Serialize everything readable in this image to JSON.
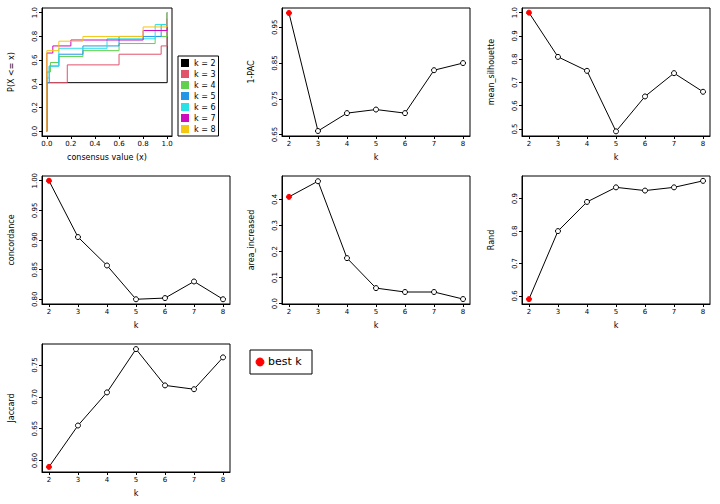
{
  "chart_data": [
    {
      "type": "step",
      "xlabel": "consensus value (x)",
      "ylabel": "P(X <= x)",
      "xlim": [
        -0.04,
        1.04
      ],
      "ylim": [
        -0.04,
        1.04
      ],
      "xticks": [
        {
          "value": 0,
          "label": "0.0"
        },
        {
          "value": 0.2,
          "label": "0.2"
        },
        {
          "value": 0.4,
          "label": "0.4"
        },
        {
          "value": 0.6,
          "label": "0.6"
        },
        {
          "value": 0.8,
          "label": "0.8"
        },
        {
          "value": 1,
          "label": "1.0"
        }
      ],
      "yticks": [
        {
          "value": 0,
          "label": "0.0"
        },
        {
          "value": 0.2,
          "label": "0.2"
        },
        {
          "value": 0.4,
          "label": "0.4"
        },
        {
          "value": 0.6,
          "label": "0.6"
        },
        {
          "value": 0.8,
          "label": "0.8"
        },
        {
          "value": 1,
          "label": "1.0"
        }
      ],
      "legend": "bottom-right",
      "series": [
        {
          "name": "k = 2",
          "color": "#000000",
          "x": [
            0,
            0,
            0.99,
            1.0
          ],
          "values": [
            0,
            0.41,
            0.41,
            1.0
          ]
        },
        {
          "name": "k = 3",
          "color": "#DF536B",
          "x": [
            0,
            0,
            0.17,
            0.6,
            0.95,
            1.0
          ],
          "values": [
            0,
            0.41,
            0.56,
            0.65,
            0.72,
            1.0
          ]
        },
        {
          "name": "k = 4",
          "color": "#61D04F",
          "x": [
            0,
            0,
            0.03,
            0.1,
            0.3,
            0.6,
            0.9,
            1.0
          ],
          "values": [
            0,
            0.5,
            0.58,
            0.63,
            0.68,
            0.74,
            0.8,
            1.0
          ]
        },
        {
          "name": "k = 5",
          "color": "#2297E6",
          "x": [
            0,
            0,
            0.02,
            0.1,
            0.3,
            0.6,
            0.95,
            1.0
          ],
          "values": [
            0,
            0.41,
            0.55,
            0.65,
            0.72,
            0.8,
            0.9,
            1.0
          ]
        },
        {
          "name": "k = 6",
          "color": "#28E2E5",
          "x": [
            0,
            0,
            0.02,
            0.1,
            0.5,
            0.9,
            1.0
          ],
          "values": [
            0,
            0.45,
            0.55,
            0.7,
            0.78,
            0.9,
            1.0
          ]
        },
        {
          "name": "k = 7",
          "color": "#CD0BBC",
          "x": [
            0,
            0,
            0.05,
            0.2,
            0.8,
            1.0
          ],
          "values": [
            0,
            0.66,
            0.72,
            0.77,
            0.85,
            0.95
          ]
        },
        {
          "name": "k = 8",
          "color": "#F5C710",
          "x": [
            0,
            0,
            0.1,
            0.3,
            0.8,
            1.0
          ],
          "values": [
            0,
            0.68,
            0.76,
            0.8,
            0.88,
            1.0
          ]
        }
      ]
    },
    {
      "type": "line",
      "xlabel": "k",
      "ylabel": "1-PAC",
      "marker": "circle",
      "x": [
        2,
        3,
        4,
        5,
        6,
        7,
        8
      ],
      "values": [
        0.99,
        0.66,
        0.71,
        0.72,
        0.71,
        0.83,
        0.85
      ],
      "colors": [
        "#FF0000",
        "#000000",
        "#000000",
        "#000000",
        "#000000",
        "#000000",
        "#000000"
      ],
      "xlim": [
        1.76,
        8.24
      ],
      "xticks": [
        2,
        3,
        4,
        5,
        6,
        7,
        8
      ],
      "ylim": [
        0.646,
        1.004
      ],
      "yticks": [
        0.65,
        0.75,
        0.85,
        0.95
      ]
    },
    {
      "type": "line",
      "xlabel": "k",
      "ylabel": "mean_silhouette",
      "marker": "circle",
      "x": [
        2,
        3,
        4,
        5,
        6,
        7,
        8
      ],
      "values": [
        1.0,
        0.81,
        0.75,
        0.49,
        0.64,
        0.74,
        0.66
      ],
      "colors": [
        "#FF0000",
        "#000000",
        "#000000",
        "#000000",
        "#000000",
        "#000000",
        "#000000"
      ],
      "xlim": [
        1.76,
        8.24
      ],
      "xticks": [
        2,
        3,
        4,
        5,
        6,
        7,
        8
      ],
      "ylim": [
        0.47,
        1.02
      ],
      "yticks": [
        0.5,
        0.6,
        0.7,
        0.8,
        0.9,
        {
          "value": 1,
          "label": "1.0"
        }
      ]
    },
    {
      "type": "line",
      "xlabel": "k",
      "ylabel": "concordance",
      "marker": "circle",
      "x": [
        2,
        3,
        4,
        5,
        6,
        7,
        8
      ],
      "values": [
        1.0,
        0.905,
        0.857,
        0.8,
        0.802,
        0.83,
        0.8
      ],
      "colors": [
        "#FF0000",
        "#000000",
        "#000000",
        "#000000",
        "#000000",
        "#000000",
        "#000000"
      ],
      "xlim": [
        1.76,
        8.24
      ],
      "xticks": [
        2,
        3,
        4,
        5,
        6,
        7,
        8
      ],
      "ylim": [
        0.792,
        1.008
      ],
      "yticks": [
        {
          "value": 0.8,
          "label": "0.80"
        },
        0.85,
        {
          "value": 0.9,
          "label": "0.90"
        },
        0.95,
        {
          "value": 1,
          "label": "1.00"
        }
      ]
    },
    {
      "type": "line",
      "xlabel": "k",
      "ylabel": "area_increased",
      "marker": "circle",
      "x": [
        2,
        3,
        4,
        5,
        6,
        7,
        8
      ],
      "values": [
        0.41,
        0.47,
        0.175,
        0.06,
        0.045,
        0.045,
        0.018
      ],
      "colors": [
        "#FF0000",
        "#000000",
        "#000000",
        "#000000",
        "#000000",
        "#000000",
        "#000000"
      ],
      "xlim": [
        1.76,
        8.24
      ],
      "xticks": [
        2,
        3,
        4,
        5,
        6,
        7,
        8
      ],
      "ylim": [
        -0.001,
        0.49
      ],
      "yticks": [
        {
          "value": 0,
          "label": "0.0"
        },
        0.1,
        0.2,
        0.3,
        0.4
      ]
    },
    {
      "type": "line",
      "xlabel": "k",
      "ylabel": "Rand",
      "marker": "circle",
      "x": [
        2,
        3,
        4,
        5,
        6,
        7,
        8
      ],
      "values": [
        0.59,
        0.8,
        0.89,
        0.935,
        0.925,
        0.935,
        0.955
      ],
      "colors": [
        "#FF0000",
        "#000000",
        "#000000",
        "#000000",
        "#000000",
        "#000000",
        "#000000"
      ],
      "xlim": [
        1.76,
        8.24
      ],
      "xticks": [
        2,
        3,
        4,
        5,
        6,
        7,
        8
      ],
      "ylim": [
        0.575,
        0.97
      ],
      "yticks": [
        0.6,
        0.7,
        0.8,
        0.9
      ]
    },
    {
      "type": "line",
      "xlabel": "k",
      "ylabel": "Jaccard",
      "marker": "circle",
      "x": [
        2,
        3,
        4,
        5,
        6,
        7,
        8
      ],
      "values": [
        0.59,
        0.655,
        0.707,
        0.775,
        0.718,
        0.712,
        0.762
      ],
      "colors": [
        "#FF0000",
        "#000000",
        "#000000",
        "#000000",
        "#000000",
        "#000000",
        "#000000"
      ],
      "xlim": [
        1.76,
        8.24
      ],
      "xticks": [
        2,
        3,
        4,
        5,
        6,
        7,
        8
      ],
      "ylim": [
        0.582,
        0.783
      ],
      "yticks": [
        {
          "value": 0.6,
          "label": "0.60"
        },
        0.65,
        {
          "value": 0.7,
          "label": "0.70"
        },
        0.75
      ]
    },
    {
      "type": "legend",
      "series": [
        {
          "name": "best k",
          "color": "#FF0000",
          "marker": "circle"
        }
      ]
    }
  ]
}
